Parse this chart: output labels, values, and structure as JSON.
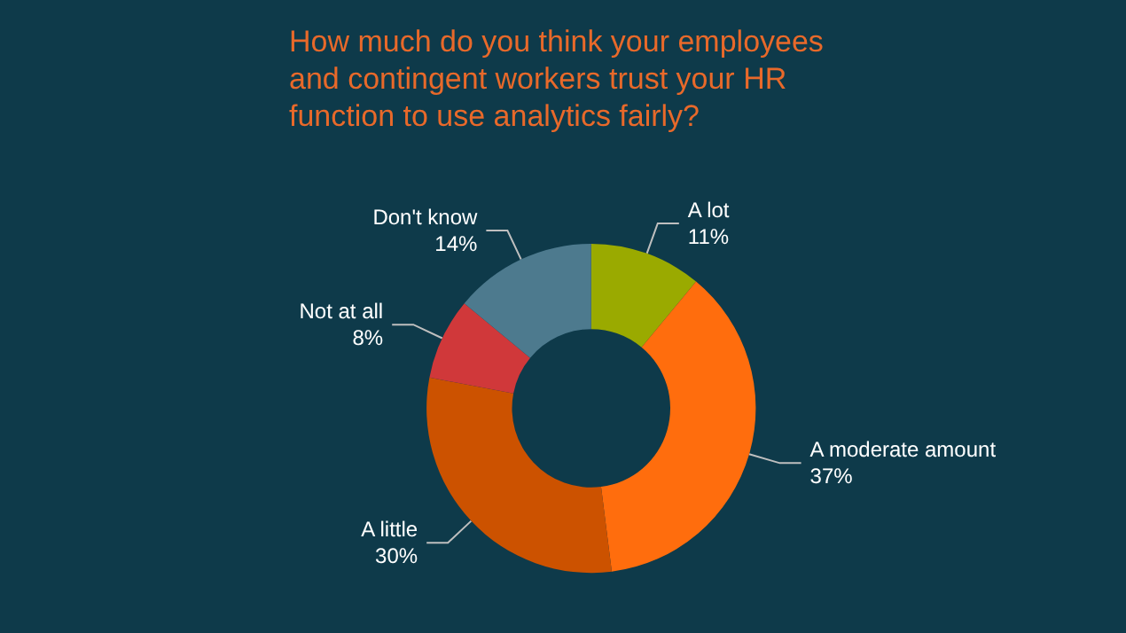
{
  "chart_data": {
    "type": "donut",
    "title": "How much do you think your employees\nand contingent workers trust your HR\nfunction to use analytics fairly?",
    "categories": [
      "A lot",
      "A moderate amount",
      "A little",
      "Not at all",
      "Don't know"
    ],
    "values": [
      11,
      37,
      30,
      8,
      14
    ],
    "value_labels": [
      "11%",
      "37%",
      "30%",
      "8%",
      "14%"
    ],
    "colors": [
      "#9aaa00",
      "#ff6d0d",
      "#cc5200",
      "#d0383a",
      "#4d7a8e"
    ],
    "legend": false
  }
}
